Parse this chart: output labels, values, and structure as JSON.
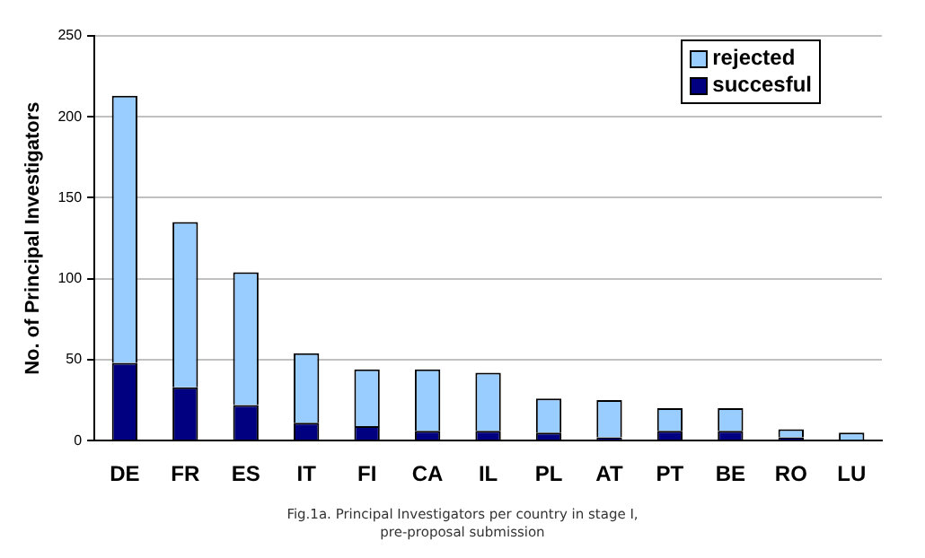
{
  "chart_data": {
    "type": "bar",
    "ylabel": "No. of Principal Investigators",
    "categories": [
      "DE",
      "FR",
      "ES",
      "IT",
      "FI",
      "CA",
      "IL",
      "PL",
      "AT",
      "PT",
      "BE",
      "RO",
      "LU"
    ],
    "series": [
      {
        "name": "succesful",
        "color": "#000080",
        "values": [
          48,
          33,
          22,
          11,
          9,
          6,
          6,
          5,
          2,
          6,
          6,
          2,
          0
        ]
      },
      {
        "name": "rejected",
        "color": "#99ccff",
        "values": [
          165,
          102,
          82,
          43,
          35,
          38,
          36,
          21,
          23,
          14,
          14,
          5,
          5
        ]
      }
    ],
    "stacked": true,
    "ylim": [
      0,
      250
    ],
    "yticks": [
      0,
      50,
      100,
      150,
      200,
      250
    ],
    "grid": "y",
    "legend": "top right",
    "annotations": [
      "Fig.1a. Principal Investigators per country in stage I,",
      "pre-proposal submission"
    ]
  }
}
